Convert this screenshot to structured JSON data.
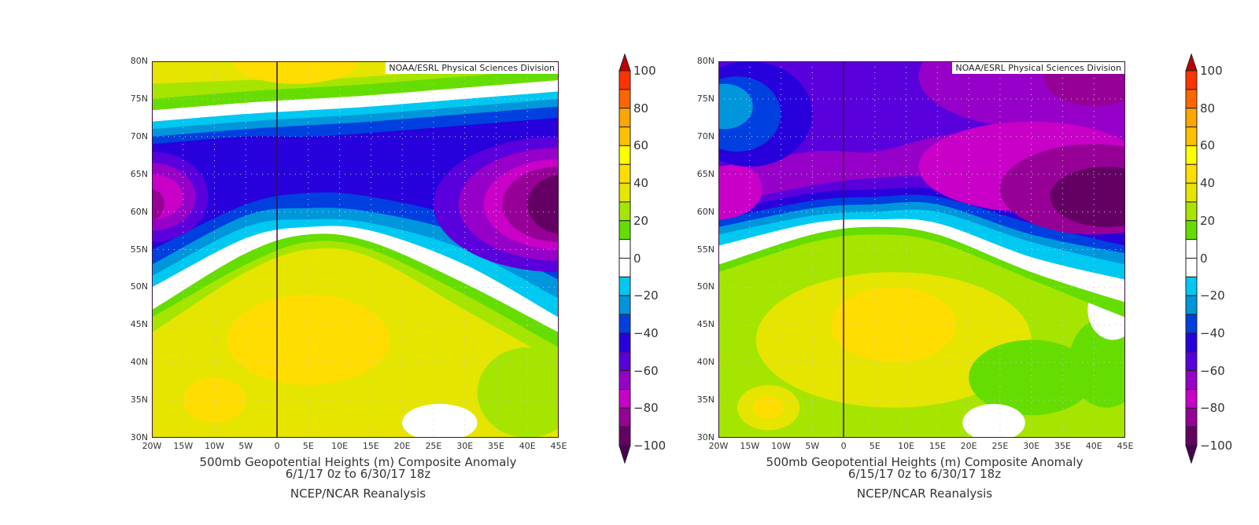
{
  "panels": [
    {
      "credit": "NOAA/ESRL Physical Sciences Division",
      "title": "500mb Geopotential Heights (m)   Composite Anomaly",
      "dates": "6/1/17 0z  to 6/30/17 18z",
      "source": "NCEP/NCAR Reanalysis"
    },
    {
      "credit": "NOAA/ESRL Physical Sciences Division",
      "title": "500mb Geopotential Heights (m)   Composite Anomaly",
      "dates": "6/15/17 0z  to 6/30/17 18z",
      "source": "NCEP/NCAR Reanalysis"
    }
  ],
  "lat_ticks": [
    "80N",
    "75N",
    "70N",
    "65N",
    "60N",
    "55N",
    "50N",
    "45N",
    "40N",
    "35N",
    "30N"
  ],
  "lon_ticks": [
    "20W",
    "15W",
    "10W",
    "5W",
    "0",
    "5E",
    "10E",
    "15E",
    "20E",
    "25E",
    "30E",
    "35E",
    "40E",
    "45E"
  ],
  "colorbar": {
    "labels": [
      "100",
      "80",
      "60",
      "40",
      "20",
      "0",
      "−20",
      "−40",
      "−60",
      "−80",
      "−100"
    ],
    "over_color": "#c00000",
    "under_color": "#4a0050",
    "colors": [
      "#ff3300",
      "#ff6600",
      "#ffa500",
      "#ffc000",
      "#ffff00",
      "#ffdd00",
      "#e5e500",
      "#a5e500",
      "#66dd00",
      "#ffffff",
      "#ffffff",
      "#00c8f0",
      "#0096dc",
      "#0040e0",
      "#2800dc",
      "#5a00dc",
      "#9600c8",
      "#c800c8",
      "#960096",
      "#640064"
    ]
  }
}
